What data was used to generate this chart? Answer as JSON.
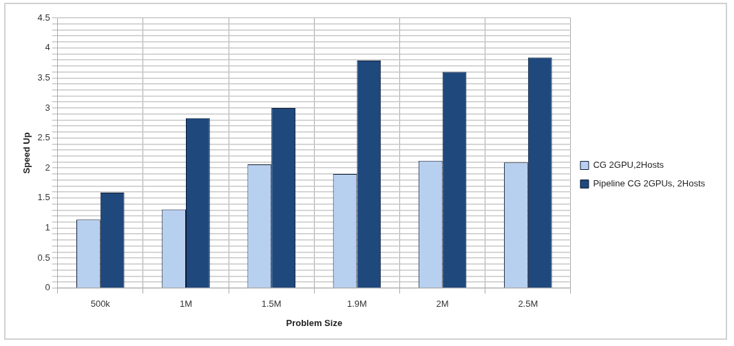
{
  "chart_data": {
    "type": "bar",
    "xlabel": "Problem Size",
    "ylabel": "Speed Up",
    "categories": [
      "500k",
      "1M",
      "1.5M",
      "1.9M",
      "2M",
      "2.5M"
    ],
    "series": [
      {
        "name": "CG 2GPU,2Hosts",
        "color": "#b8d0f0",
        "values": [
          1.14,
          1.31,
          2.06,
          1.9,
          2.12,
          2.09
        ]
      },
      {
        "name": "Pipeline CG 2GPUs, 2Hosts",
        "color": "#1f497d",
        "values": [
          1.59,
          2.83,
          3.0,
          3.79,
          3.6,
          3.84
        ]
      }
    ],
    "ylim": [
      0,
      4.5
    ],
    "yticks": [
      0,
      {
        "value": 0.1,
        "label": null
      },
      {
        "value": 0.2,
        "label": null
      },
      {
        "value": 0.3,
        "label": null
      },
      {
        "value": 0.4,
        "label": null
      },
      0.5,
      {
        "value": 0.6,
        "label": null
      },
      {
        "value": 0.7,
        "label": null
      },
      {
        "value": 0.8,
        "label": null
      },
      {
        "value": 0.9,
        "label": null
      },
      1,
      {
        "value": 1.1,
        "label": null
      },
      {
        "value": 1.2,
        "label": null
      },
      {
        "value": 1.3,
        "label": null
      },
      {
        "value": 1.4,
        "label": null
      },
      1.5,
      {
        "value": 1.6,
        "label": null
      },
      {
        "value": 1.7,
        "label": null
      },
      {
        "value": 1.8,
        "label": null
      },
      {
        "value": 1.9,
        "label": null
      },
      2,
      {
        "value": 2.1,
        "label": null
      },
      {
        "value": 2.2,
        "label": null
      },
      {
        "value": 2.3,
        "label": null
      },
      {
        "value": 2.4,
        "label": null
      },
      2.5,
      {
        "value": 2.6,
        "label": null
      },
      {
        "value": 2.7,
        "label": null
      },
      {
        "value": 2.8,
        "label": null
      },
      {
        "value": 2.9,
        "label": null
      },
      3,
      {
        "value": 3.1,
        "label": null
      },
      {
        "value": 3.2,
        "label": null
      },
      {
        "value": 3.3,
        "label": null
      },
      {
        "value": 3.4,
        "label": null
      },
      3.5,
      {
        "value": 3.6,
        "label": null
      },
      {
        "value": 3.7,
        "label": null
      },
      {
        "value": 3.8,
        "label": null
      },
      {
        "value": 3.9,
        "label": null
      },
      4,
      {
        "value": 4.1,
        "label": null
      },
      {
        "value": 4.2,
        "label": null
      },
      {
        "value": 4.3,
        "label": null
      },
      {
        "value": 4.4,
        "label": null
      },
      4.5
    ],
    "grid": true,
    "legend": "right"
  }
}
